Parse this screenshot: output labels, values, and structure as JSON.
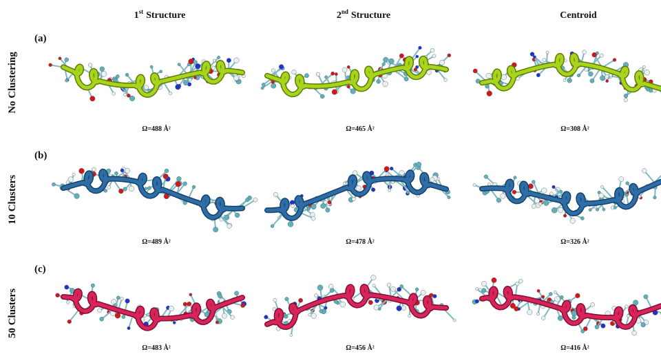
{
  "columns": [
    {
      "number": "1",
      "suffix": "st",
      "title": "Structure"
    },
    {
      "number": "2",
      "suffix": "nd",
      "title": "Structure"
    },
    {
      "title": "Centroid"
    }
  ],
  "rows": [
    {
      "tag": "(a)",
      "label": "No Clustering",
      "captions": [
        "Ω=488 Å²",
        "Ω=465 Å²",
        "Ω=308 Å²"
      ]
    },
    {
      "tag": "(b)",
      "label": "10 Clusters",
      "captions": [
        "Ω=489 Å²",
        "Ω=478 Å²",
        "Ω=326 Å²"
      ]
    },
    {
      "tag": "(c)",
      "label": "50 Clusters",
      "captions": [
        "Ω=483 Å²",
        "Ω=456 Å²",
        "Ω=416 Å²"
      ]
    }
  ]
}
